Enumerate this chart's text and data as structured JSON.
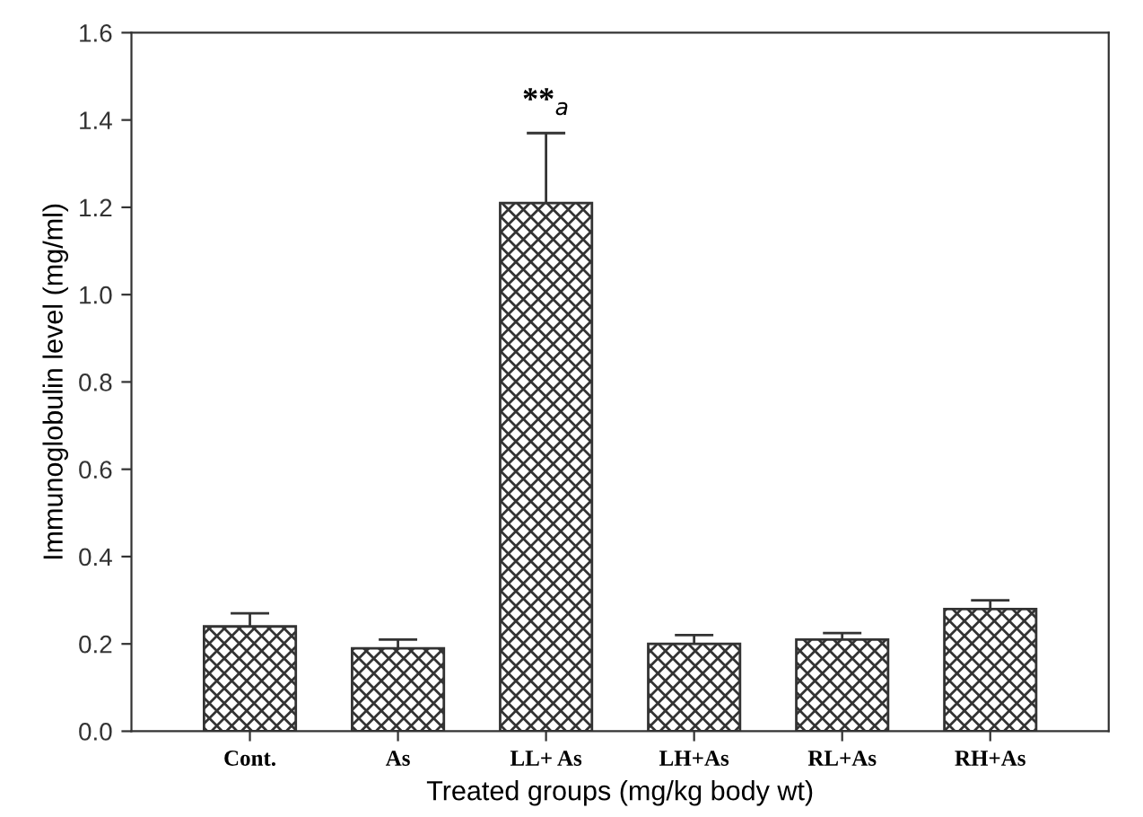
{
  "chart_data": {
    "type": "bar",
    "xlabel": "Treated groups (mg/kg body wt)",
    "ylabel": "Immunoglobulin level (mg/ml)",
    "categories": [
      "Cont.",
      "As",
      "LL+ As",
      "LH+As",
      "RL+As",
      "RH+As"
    ],
    "values": [
      0.24,
      0.19,
      1.21,
      0.2,
      0.21,
      0.28
    ],
    "errors": [
      [
        0.24,
        0.27
      ],
      [
        0.19,
        0.21
      ],
      [
        1.21,
        1.37
      ],
      [
        0.2,
        0.22
      ],
      [
        0.21,
        0.225
      ],
      [
        0.28,
        0.3
      ]
    ],
    "color": "#333333",
    "ylim": [
      0,
      1.6
    ],
    "yticks": [
      {
        "value": 0,
        "label": "0.0"
      },
      0.2,
      0.4,
      0.6,
      0.8,
      {
        "value": 1,
        "label": "1.0"
      },
      1.2,
      1.4,
      1.6
    ],
    "annotations": [
      "**$_{a}$"
    ],
    "grid": false,
    "legend": false
  }
}
